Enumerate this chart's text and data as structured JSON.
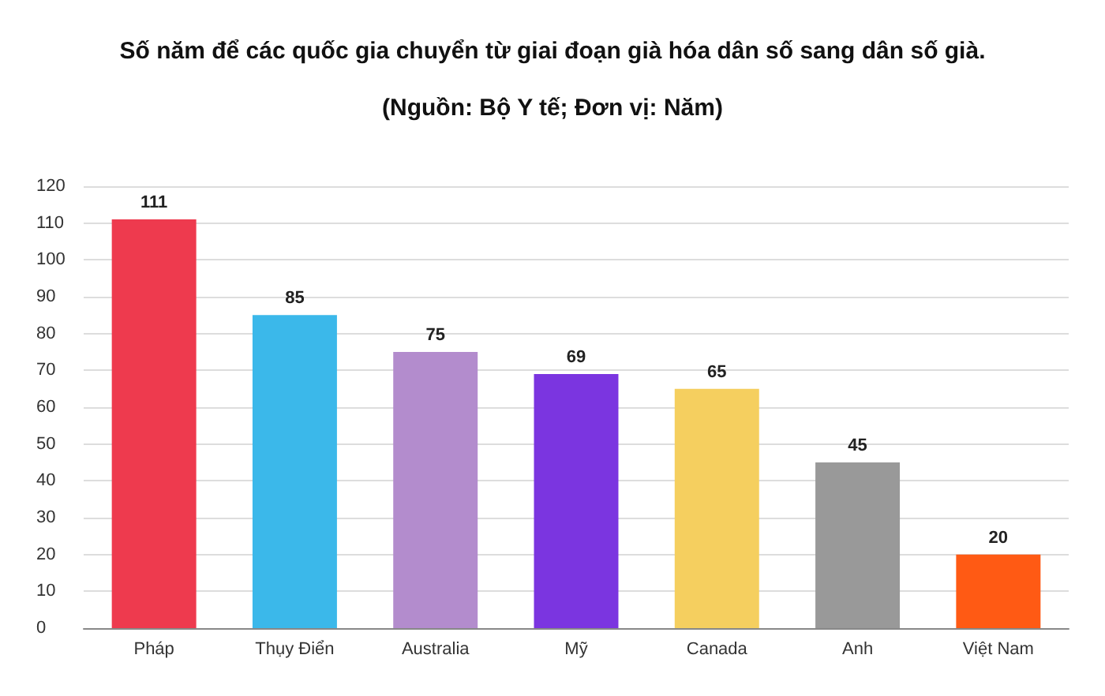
{
  "chart_data": {
    "type": "bar",
    "title": "Số năm để các quốc gia chuyển từ giai đoạn già hóa dân số sang dân số già.",
    "subtitle": "(Nguồn: Bộ Y tế; Đơn vị: Năm)",
    "categories": [
      "Pháp",
      "Thụy Điển",
      "Australia",
      "Mỹ",
      "Canada",
      "Anh",
      "Việt Nam"
    ],
    "values": [
      111,
      85,
      75,
      69,
      65,
      45,
      20
    ],
    "colors": [
      "#ee3a4e",
      "#3bb8ea",
      "#b38ccd",
      "#7b35e0",
      "#f5cf5f",
      "#999999",
      "#ff5a14"
    ],
    "ylim": [
      0,
      120
    ],
    "yticks": [
      0,
      10,
      20,
      30,
      40,
      50,
      60,
      70,
      80,
      90,
      100,
      110,
      120
    ],
    "grid": "y",
    "data_labels": true
  }
}
